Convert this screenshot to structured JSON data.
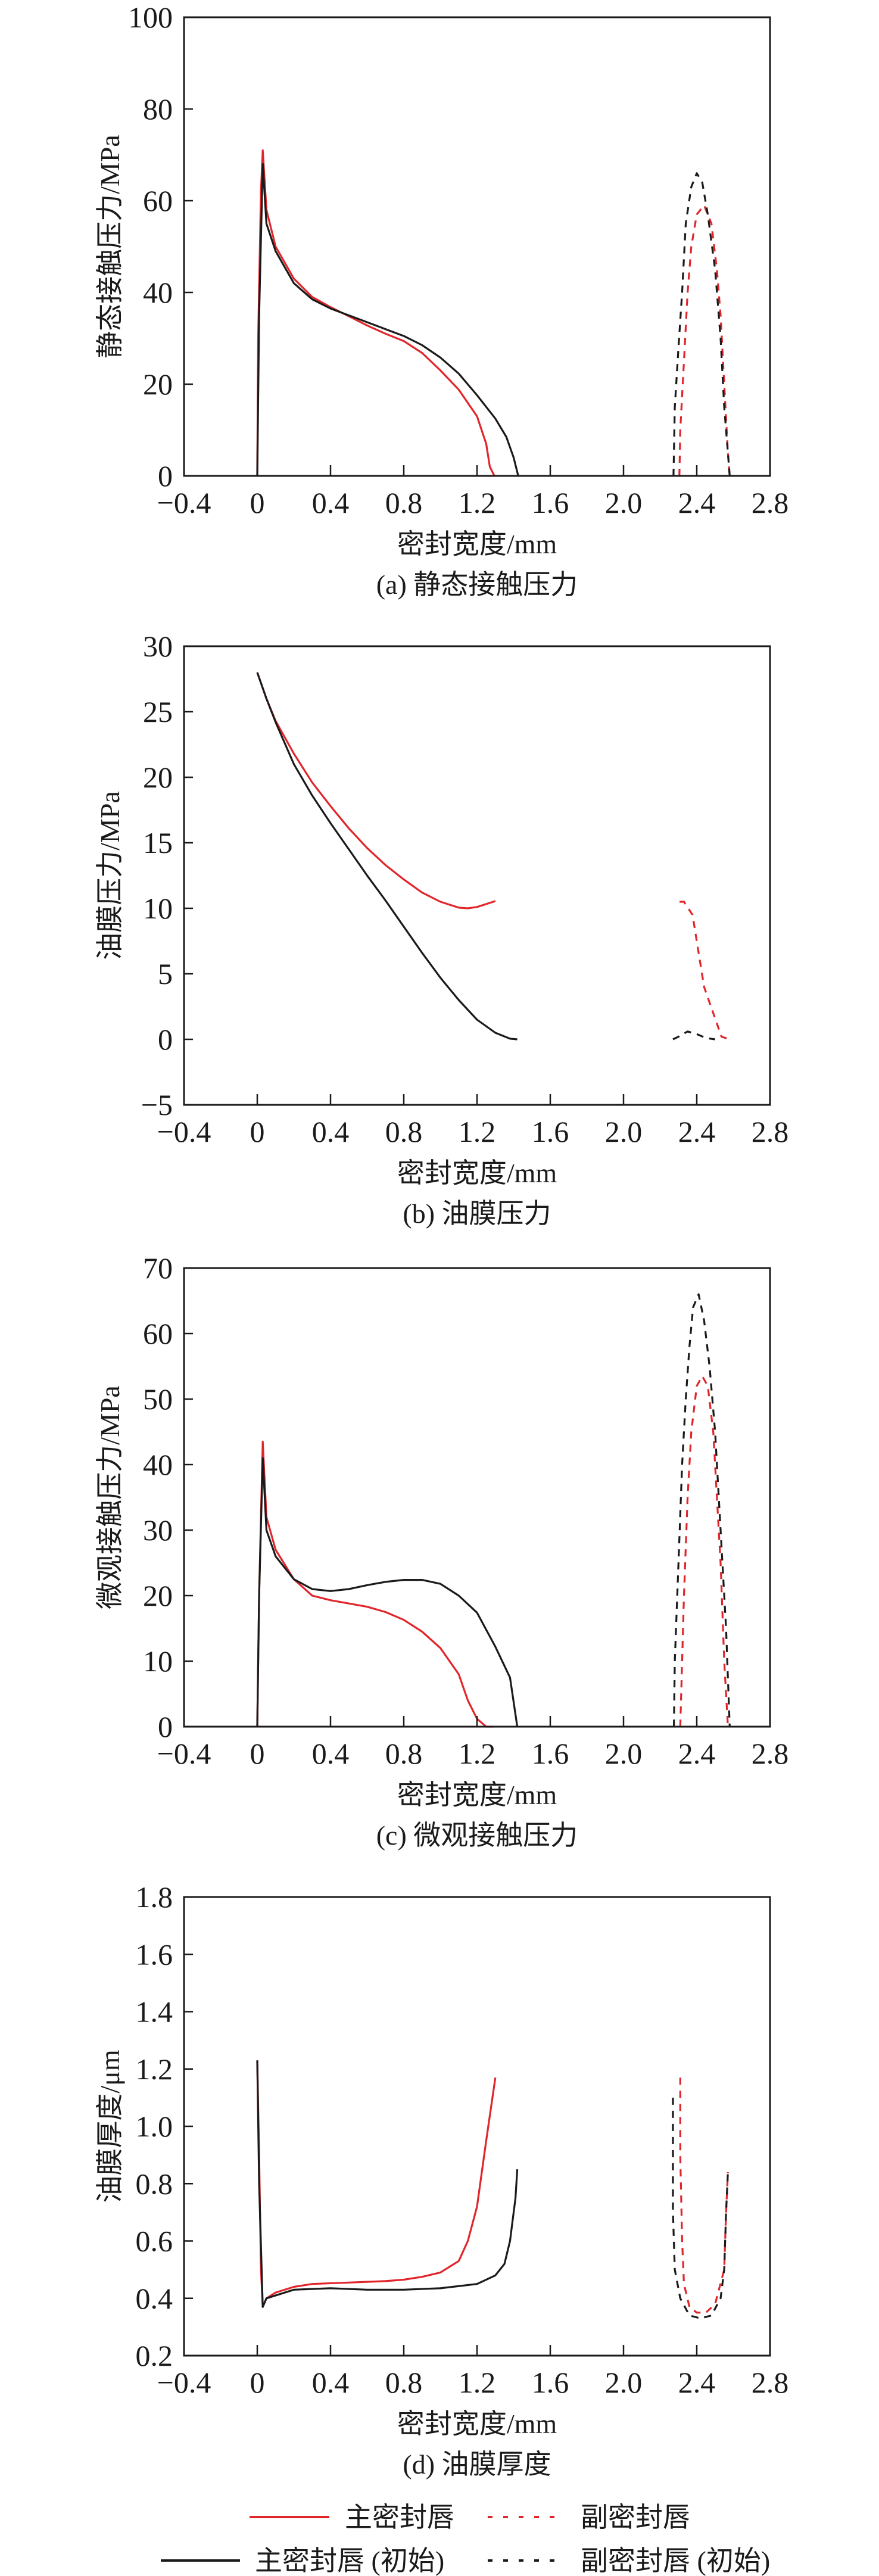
{
  "colors": {
    "main": "#e0262b",
    "initial": "#1a1a1a",
    "axis": "#1a1a1a"
  },
  "legend": {
    "items": [
      {
        "label": "主密封唇",
        "color": "#e0262b",
        "style": "solid"
      },
      {
        "label": "副密封唇",
        "color": "#e0262b",
        "style": "dashed"
      },
      {
        "label": "主密封唇 (初始)",
        "color": "#1a1a1a",
        "style": "solid"
      },
      {
        "label": "副密封唇 (初始)",
        "color": "#1a1a1a",
        "style": "dashed"
      }
    ]
  },
  "chart_data": [
    {
      "type": "line",
      "caption": "(a) 静态接触压力",
      "xlabel": "密封宽度/mm",
      "ylabel": "静态接触压力/MPa",
      "xlim": [
        -0.4,
        2.8
      ],
      "ylim": [
        0,
        100
      ],
      "xticks": [
        "-0.4",
        "0",
        "0.4",
        "0.8",
        "1.2",
        "1.6",
        "2.0",
        "2.4",
        "2.8"
      ],
      "yticks": [
        "0",
        "20",
        "40",
        "60",
        "80",
        "100"
      ],
      "series": [
        {
          "name": "主密封唇",
          "color": "#e0262b",
          "dashed": false,
          "x": [
            0,
            0.005,
            0.02,
            0.03,
            0.05,
            0.1,
            0.2,
            0.3,
            0.4,
            0.5,
            0.6,
            0.7,
            0.8,
            0.9,
            1.0,
            1.1,
            1.2,
            1.25,
            1.27,
            1.295
          ],
          "y": [
            0,
            30,
            62,
            71,
            58,
            50,
            43,
            39,
            36.8,
            34.8,
            32.8,
            31,
            29.4,
            26.8,
            23,
            18.8,
            13,
            7,
            2,
            0
          ]
        },
        {
          "name": "主密封唇 (初始)",
          "color": "#1a1a1a",
          "dashed": false,
          "x": [
            0,
            0.01,
            0.03,
            0.05,
            0.1,
            0.2,
            0.3,
            0.4,
            0.5,
            0.6,
            0.7,
            0.8,
            0.9,
            1.0,
            1.1,
            1.2,
            1.3,
            1.36,
            1.4,
            1.425
          ],
          "y": [
            0,
            35,
            68,
            55,
            49,
            42,
            38.5,
            36.5,
            35,
            33.5,
            32,
            30.5,
            28.5,
            25.8,
            22.3,
            17.6,
            12.5,
            8.5,
            4,
            0
          ]
        },
        {
          "name": "副密封唇",
          "color": "#e0262b",
          "dashed": true,
          "x": [
            2.305,
            2.31,
            2.33,
            2.35,
            2.37,
            2.4,
            2.44,
            2.48,
            2.51,
            2.53,
            2.55,
            2.57,
            2.58
          ],
          "y": [
            0,
            10,
            25,
            40,
            50,
            57,
            59,
            55,
            45,
            35,
            20,
            5,
            0
          ]
        },
        {
          "name": "副密封唇 (初始)",
          "color": "#1a1a1a",
          "dashed": true,
          "x": [
            2.273,
            2.28,
            2.3,
            2.32,
            2.34,
            2.37,
            2.4,
            2.43,
            2.46,
            2.5,
            2.53,
            2.55,
            2.57,
            2.58
          ],
          "y": [
            0,
            15,
            28,
            40,
            55,
            63,
            66,
            64,
            57,
            45,
            30,
            15,
            5,
            0
          ]
        }
      ]
    },
    {
      "type": "line",
      "caption": "(b) 油膜压力",
      "xlabel": "密封宽度/mm",
      "ylabel": "油膜压力/MPa",
      "xlim": [
        -0.4,
        2.8
      ],
      "ylim": [
        -5,
        30
      ],
      "xticks": [
        "-0.4",
        "0",
        "0.4",
        "0.8",
        "1.2",
        "1.6",
        "2.0",
        "2.4",
        "2.8"
      ],
      "yticks": [
        "-5",
        "0",
        "5",
        "10",
        "15",
        "20",
        "25",
        "30"
      ],
      "series": [
        {
          "name": "主密封唇",
          "color": "#e0262b",
          "dashed": false,
          "x": [
            0,
            0.05,
            0.1,
            0.2,
            0.3,
            0.4,
            0.5,
            0.6,
            0.7,
            0.8,
            0.9,
            1.0,
            1.1,
            1.15,
            1.2,
            1.3
          ],
          "y": [
            28,
            26,
            24.3,
            21.8,
            19.6,
            17.8,
            16.1,
            14.6,
            13.3,
            12.2,
            11.2,
            10.5,
            10.05,
            10,
            10.1,
            10.55
          ]
        },
        {
          "name": "主密封唇 (初始)",
          "color": "#1a1a1a",
          "dashed": false,
          "x": [
            0,
            0.05,
            0.1,
            0.2,
            0.3,
            0.4,
            0.5,
            0.6,
            0.7,
            0.8,
            0.9,
            1.0,
            1.1,
            1.2,
            1.3,
            1.38,
            1.42
          ],
          "y": [
            28,
            26,
            24.2,
            21,
            18.6,
            16.5,
            14.5,
            12.5,
            10.6,
            8.6,
            6.6,
            4.7,
            3.0,
            1.5,
            0.5,
            0.05,
            0
          ]
        },
        {
          "name": "副密封唇",
          "color": "#e0262b",
          "dashed": true,
          "x": [
            2.306,
            2.33,
            2.377,
            2.44,
            2.49,
            2.535,
            2.58
          ],
          "y": [
            10.5,
            10.5,
            9.5,
            4,
            2,
            0.2,
            0
          ]
        },
        {
          "name": "副密封唇 (初始)",
          "color": "#1a1a1a",
          "dashed": true,
          "x": [
            2.27,
            2.3,
            2.35,
            2.4,
            2.45,
            2.5
          ],
          "y": [
            0,
            0.2,
            0.6,
            0.4,
            0.1,
            0
          ]
        }
      ]
    },
    {
      "type": "line",
      "caption": "(c) 微观接触压力",
      "xlabel": "密封宽度/mm",
      "ylabel": "微观接触压力/MPa",
      "xlim": [
        -0.4,
        2.8
      ],
      "ylim": [
        0,
        70
      ],
      "xticks": [
        "-0.4",
        "0",
        "0.4",
        "0.8",
        "1.2",
        "1.6",
        "2.0",
        "2.4",
        "2.8"
      ],
      "yticks": [
        "0",
        "10",
        "20",
        "30",
        "40",
        "50",
        "60",
        "70"
      ],
      "series": [
        {
          "name": "主密封唇",
          "color": "#e0262b",
          "dashed": false,
          "x": [
            0,
            0.01,
            0.03,
            0.05,
            0.1,
            0.2,
            0.3,
            0.4,
            0.5,
            0.6,
            0.7,
            0.8,
            0.9,
            1.0,
            1.1,
            1.15,
            1.2,
            1.25,
            1.29
          ],
          "y": [
            0,
            20,
            43.5,
            32,
            27,
            22.5,
            20,
            19.3,
            18.8,
            18.3,
            17.5,
            16.3,
            14.5,
            12,
            8,
            4,
            1.2,
            0,
            0
          ]
        },
        {
          "name": "主密封唇 (初始)",
          "color": "#1a1a1a",
          "dashed": false,
          "x": [
            0,
            0.01,
            0.03,
            0.05,
            0.1,
            0.2,
            0.3,
            0.4,
            0.5,
            0.6,
            0.7,
            0.8,
            0.9,
            1.0,
            1.1,
            1.2,
            1.3,
            1.38,
            1.42
          ],
          "y": [
            0,
            20,
            41,
            30,
            26,
            22.5,
            21,
            20.7,
            21,
            21.6,
            22.1,
            22.4,
            22.4,
            21.8,
            20,
            17.4,
            12.2,
            7.5,
            0
          ]
        },
        {
          "name": "副密封唇",
          "color": "#e0262b",
          "dashed": true,
          "x": [
            2.31,
            2.32,
            2.33,
            2.35,
            2.37,
            2.4,
            2.43,
            2.46,
            2.49,
            2.51,
            2.53,
            2.55,
            2.57
          ],
          "y": [
            0,
            10,
            20,
            35,
            45,
            52,
            53.5,
            52,
            45,
            35,
            25,
            10,
            0
          ]
        },
        {
          "name": "副密封唇 (初始)",
          "color": "#1a1a1a",
          "dashed": true,
          "x": [
            2.275,
            2.28,
            2.3,
            2.32,
            2.34,
            2.36,
            2.38,
            2.41,
            2.44,
            2.47,
            2.5,
            2.53,
            2.56,
            2.58
          ],
          "y": [
            0,
            10,
            25,
            40,
            50,
            58,
            64,
            66,
            62,
            55,
            45,
            30,
            15,
            0
          ]
        }
      ]
    },
    {
      "type": "line",
      "caption": "(d) 油膜厚度",
      "xlabel": "密封宽度/mm",
      "ylabel": "油膜厚度/μm",
      "xlim": [
        -0.4,
        2.8
      ],
      "ylim": [
        0.2,
        1.8
      ],
      "xticks": [
        "-0.4",
        "0",
        "0.4",
        "0.8",
        "1.2",
        "1.6",
        "2.0",
        "2.4",
        "2.8"
      ],
      "yticks": [
        "0.2",
        "0.4",
        "0.6",
        "0.8",
        "1.0",
        "1.2",
        "1.4",
        "1.6",
        "1.8"
      ],
      "series": [
        {
          "name": "主密封唇",
          "color": "#e0262b",
          "dashed": false,
          "x": [
            0,
            0.01,
            0.02,
            0.03,
            0.05,
            0.1,
            0.2,
            0.3,
            0.5,
            0.7,
            0.8,
            0.9,
            1.0,
            1.1,
            1.15,
            1.2,
            1.25,
            1.3
          ],
          "y": [
            1.23,
            0.9,
            0.5,
            0.37,
            0.4,
            0.42,
            0.44,
            0.45,
            0.455,
            0.46,
            0.465,
            0.475,
            0.49,
            0.53,
            0.6,
            0.72,
            0.95,
            1.17
          ]
        },
        {
          "name": "主密封唇 (初始)",
          "color": "#1a1a1a",
          "dashed": false,
          "x": [
            0,
            0.01,
            0.03,
            0.05,
            0.2,
            0.4,
            0.6,
            0.8,
            1.0,
            1.2,
            1.3,
            1.35,
            1.38,
            1.41,
            1.42
          ],
          "y": [
            1.23,
            0.8,
            0.37,
            0.4,
            0.43,
            0.435,
            0.43,
            0.43,
            0.435,
            0.45,
            0.48,
            0.52,
            0.6,
            0.75,
            0.85
          ]
        },
        {
          "name": "副密封唇",
          "color": "#e0262b",
          "dashed": true,
          "x": [
            2.31,
            2.31,
            2.32,
            2.33,
            2.36,
            2.4,
            2.45,
            2.5,
            2.55,
            2.56,
            2.57
          ],
          "y": [
            1.17,
            0.9,
            0.6,
            0.45,
            0.37,
            0.35,
            0.35,
            0.38,
            0.5,
            0.7,
            0.84
          ]
        },
        {
          "name": "副密封唇 (初始)",
          "color": "#1a1a1a",
          "dashed": true,
          "x": [
            2.27,
            2.27,
            2.28,
            2.31,
            2.36,
            2.42,
            2.48,
            2.53,
            2.55,
            2.56,
            2.57
          ],
          "y": [
            1.1,
            0.7,
            0.5,
            0.4,
            0.34,
            0.33,
            0.34,
            0.4,
            0.5,
            0.7,
            0.84
          ]
        }
      ]
    }
  ]
}
